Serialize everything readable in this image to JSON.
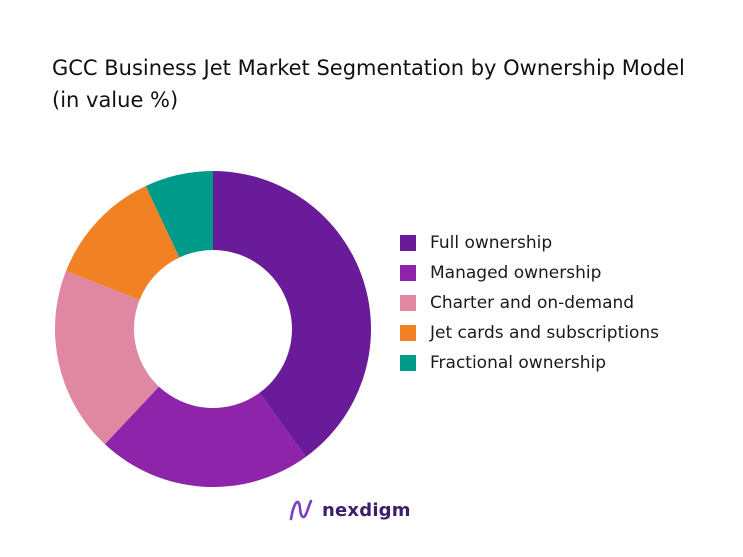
{
  "chart_data": {
    "type": "pie",
    "title": "GCC Business Jet Market Segmentation by Ownership Model (in value %)",
    "donut": true,
    "legend_position": "right",
    "series": [
      {
        "name": "Full ownership",
        "value": 40,
        "color": "#6a1b9a"
      },
      {
        "name": "Managed ownership",
        "value": 22,
        "color": "#8e24aa"
      },
      {
        "name": "Charter and on-demand",
        "value": 19,
        "color": "#e088a1"
      },
      {
        "name": "Jet cards and subscriptions",
        "value": 12,
        "color": "#f28123"
      },
      {
        "name": "Fractional ownership",
        "value": 7,
        "color": "#009a8a"
      }
    ]
  },
  "brand": {
    "name": "nexdigm",
    "icon": "nexdigm-logo-icon"
  }
}
